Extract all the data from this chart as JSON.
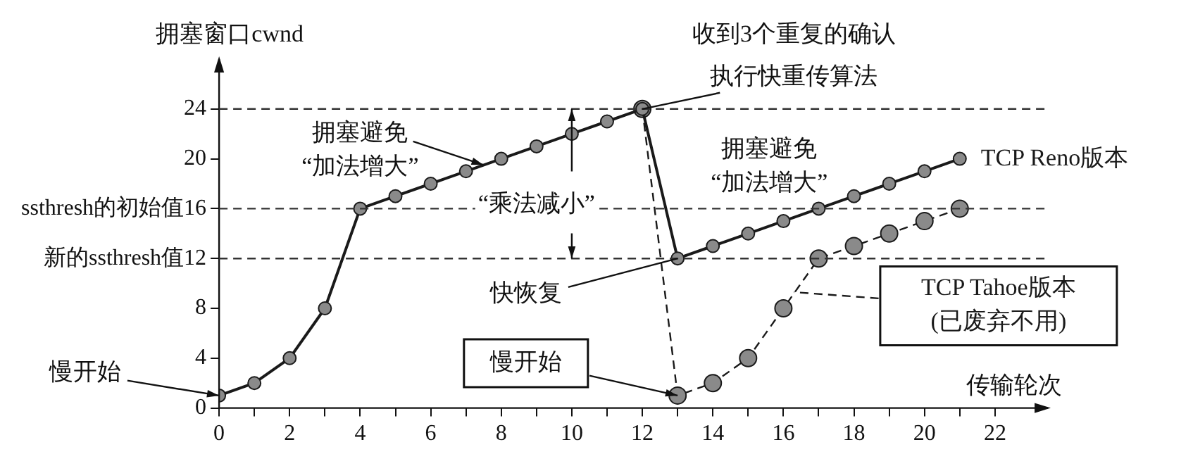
{
  "chart_data": {
    "type": "line",
    "xlabel": "传输轮次",
    "ylabel": "拥塞窗口cwnd",
    "xlim": [
      0,
      23.5
    ],
    "ylim": [
      0,
      28
    ],
    "xticks": [
      0,
      {
        "value": 1,
        "label": null
      },
      2,
      {
        "value": 3,
        "label": null
      },
      4,
      {
        "value": 5,
        "label": null
      },
      6,
      {
        "value": 7,
        "label": null
      },
      8,
      {
        "value": 9,
        "label": null
      },
      10,
      {
        "value": 11,
        "label": null
      },
      12,
      {
        "value": 13,
        "label": null
      },
      14,
      {
        "value": 15,
        "label": null
      },
      16,
      {
        "value": 17,
        "label": null
      },
      18,
      {
        "value": 19,
        "label": null
      },
      20,
      {
        "value": 21,
        "label": null
      },
      22
    ],
    "yticks": [
      0,
      4,
      8,
      {
        "value": 12,
        "label": "新的ssthresh值12"
      },
      {
        "value": 16,
        "label": "ssthresh的初始值16"
      },
      20,
      24
    ],
    "marker": "circle",
    "legend": "right",
    "series": [
      {
        "name": "TCP Reno版本",
        "color": "#1a1a1a",
        "x": [
          0,
          1,
          2,
          3,
          4,
          5,
          6,
          7,
          8,
          9,
          10,
          11,
          12,
          13,
          14,
          15,
          16,
          17,
          18,
          19,
          20,
          21
        ],
        "values": [
          1,
          2,
          4,
          8,
          16,
          17,
          18,
          19,
          20,
          21,
          22,
          23,
          24,
          12,
          13,
          14,
          15,
          16,
          17,
          18,
          19,
          20
        ],
        "line_style": "solid"
      },
      {
        "name": "TCP Tahoe版本\n(已废弃不用)",
        "color": "#1a1a1a",
        "x": [
          12,
          13,
          14,
          15,
          16,
          17,
          18,
          19,
          20,
          21
        ],
        "values": [
          24,
          1,
          2,
          4,
          8,
          12,
          13,
          14,
          15,
          16
        ],
        "line_style": "dashed"
      }
    ],
    "ref_lines": [
      {
        "axis": "y",
        "value": 24,
        "color": "#333333",
        "line_style": "dashed"
      },
      {
        "axis": "y",
        "value": 16,
        "color": "#333333",
        "line_style": "dashed"
      },
      {
        "axis": "y",
        "value": 12,
        "color": "#333333",
        "line_style": "dashed"
      }
    ],
    "annotations": [
      {
        "text": "慢开始",
        "x": 0,
        "y": 1
      },
      {
        "text": "拥塞避免“加法增大”",
        "x": 7.5,
        "y": 19.5
      },
      {
        "text": "“乘法减小”",
        "x": 10,
        "y": 16.5
      },
      {
        "text": "收到3个重复的确认执行快重传算法",
        "x": 12,
        "y": 24
      },
      "拥塞避免“加法增大”",
      {
        "text": "快恢复",
        "x": 13,
        "y": 12
      },
      {
        "text": "慢开始",
        "x": 13,
        "y": 1
      }
    ]
  }
}
